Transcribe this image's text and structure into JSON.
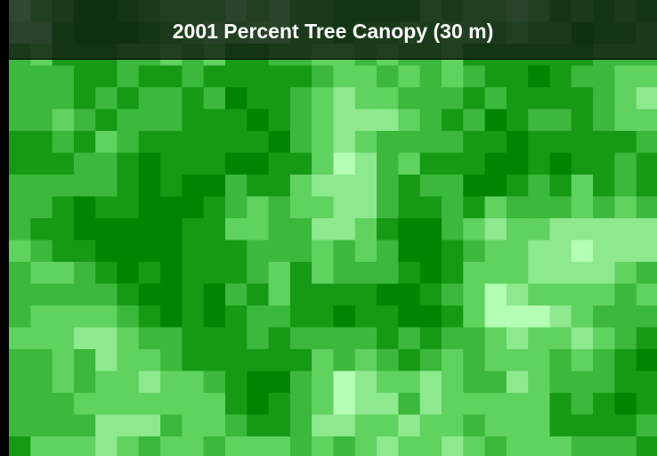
{
  "header": {
    "title": "2001 Percent Tree Canopy (30 m)"
  }
}
